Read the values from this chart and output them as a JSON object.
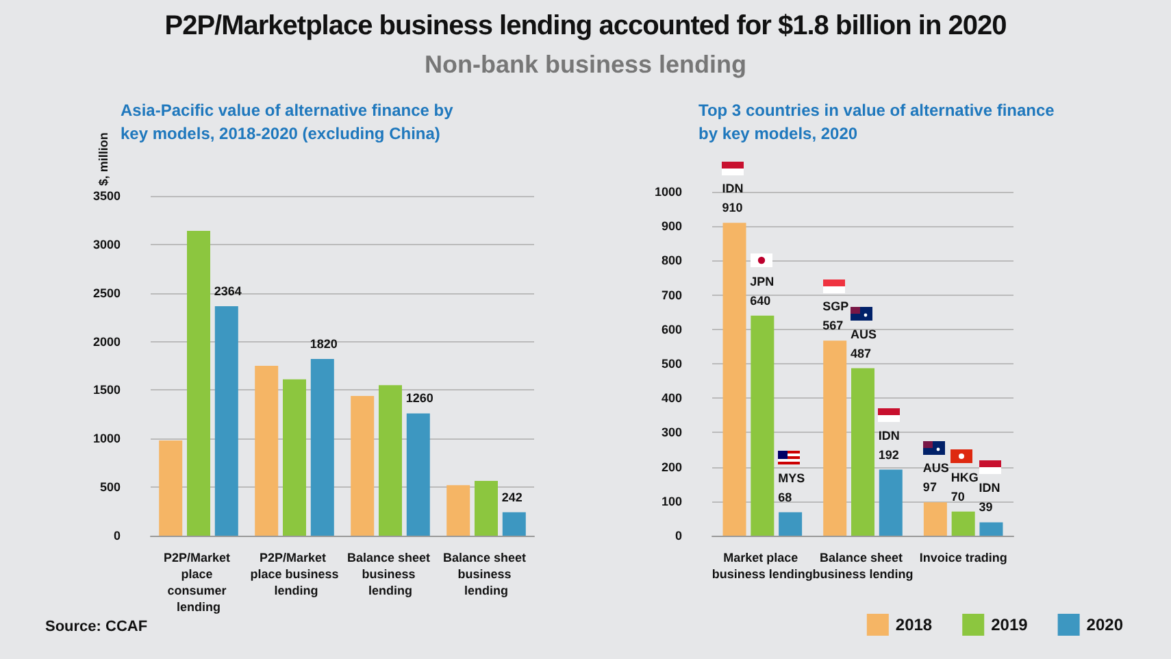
{
  "chart_data": [
    {
      "type": "bar",
      "title": "P2P/Marketplace business lending accounted for $1.8 billion in  2020",
      "subtitle": "Non-bank business lending",
      "annotations": [
        "Asia-Pacific value of alternative finance by key models, 2018-2020 (excluding China)",
        "Source: CCAF"
      ],
      "ylabel": "$, million",
      "categories": [
        "P2P/Market place consumer lending",
        "P2P/Market place business lending",
        "Balance sheet business lending",
        "Balance sheet business lending"
      ],
      "series": [
        {
          "color": "#f5b565",
          "values": [
            980,
            1750,
            1440,
            520
          ]
        },
        {
          "color": "#8cc63f",
          "values": [
            3140,
            1610,
            1550,
            565
          ]
        },
        {
          "color": "#3d97c1",
          "values": [
            2364,
            1820,
            1260,
            242
          ],
          "value_labels": [
            "2364",
            "1820",
            "1260",
            "242"
          ]
        }
      ],
      "ylim": [
        0,
        3500
      ],
      "yticks": [
        0,
        500,
        1000,
        1500,
        2000,
        2500,
        3000,
        3500
      ],
      "grid": "y",
      "legend": false
    },
    {
      "type": "bar",
      "title": "Top 3 countries in value of alternative finance by key models, 2020",
      "categories": [
        "Market place business lending",
        "Balance sheet business lending",
        "Invoice trading"
      ],
      "series": [
        {
          "name": "2018",
          "color": "#f5b565",
          "values": [
            910,
            567,
            97
          ],
          "value_labels": [
            "IDN\n910",
            "SGP\n567",
            "AUS\n97"
          ]
        },
        {
          "name": "2019",
          "color": "#8cc63f",
          "values": [
            640,
            487,
            70
          ],
          "value_labels": [
            "JPN\n640",
            "AUS\n487",
            "HKG\n70"
          ]
        },
        {
          "name": "2020",
          "color": "#3d97c1",
          "values": [
            68,
            192,
            39
          ],
          "value_labels": [
            "MYS\n68",
            "IDN\n192",
            "IDN\n39"
          ]
        }
      ],
      "ylim": [
        0,
        1000
      ],
      "yticks": [
        0,
        100,
        200,
        300,
        400,
        500,
        600,
        700,
        800,
        900,
        1000
      ],
      "grid": "y",
      "legend": "bottom right"
    }
  ]
}
